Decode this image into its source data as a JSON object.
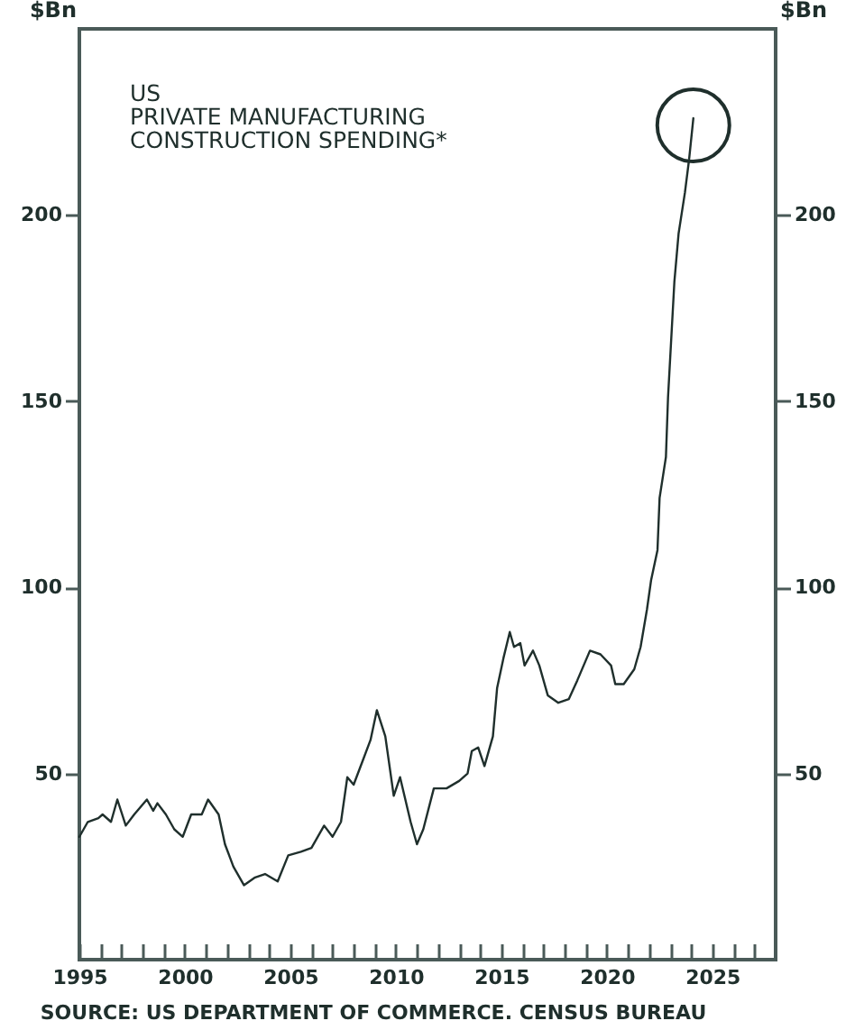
{
  "chart_data": {
    "type": "line",
    "ylabel": "$Bn",
    "y2label": "$Bn",
    "annotations": [
      "US\nPRIVATE MANUFACTURING\nCONSTRUCTION SPENDING*",
      "SOURCE: US DEPARTMENT OF COMMERCE. CENSUS BUREAU"
    ],
    "series": [
      {
        "color": "#1f2f2c",
        "x": [
          1995.0,
          1995.4,
          1995.9,
          1996.1,
          1996.5,
          1996.8,
          1997.2,
          1997.6,
          1998.2,
          1998.5,
          1998.7,
          1999.1,
          1999.5,
          1999.9,
          2000.3,
          2000.8,
          2001.1,
          2001.6,
          2001.9,
          2002.3,
          2002.8,
          2003.3,
          2003.8,
          2004.4,
          2004.9,
          2005.5,
          2006.0,
          2006.6,
          2007.0,
          2007.4,
          2007.7,
          2008.0,
          2008.4,
          2008.8,
          2009.1,
          2009.5,
          2009.9,
          2010.2,
          2010.7,
          2011.0,
          2011.3,
          2011.8,
          2012.4,
          2013.0,
          2013.4,
          2013.6,
          2013.9,
          2014.2,
          2014.6,
          2014.8,
          2015.1,
          2015.4,
          2015.6,
          2015.9,
          2016.1,
          2016.5,
          2016.8,
          2017.2,
          2017.7,
          2018.2,
          2018.6,
          2019.2,
          2019.7,
          2020.2,
          2020.4,
          2020.8,
          2021.3,
          2021.6,
          2021.9,
          2022.1,
          2022.4,
          2022.5,
          2022.8,
          2022.9,
          2023.2,
          2023.4,
          2023.7,
          2023.9,
          2024.1
        ],
        "values": [
          33,
          37,
          38,
          39,
          37,
          43,
          36,
          39,
          43,
          40,
          42,
          39,
          35,
          33,
          39,
          39,
          43,
          39,
          31,
          25,
          20,
          22,
          23,
          21,
          28,
          29,
          30,
          36,
          33,
          37,
          49,
          47,
          53,
          59,
          67,
          60,
          44,
          49,
          37,
          31,
          35,
          46,
          46,
          48,
          50,
          56,
          57,
          52,
          60,
          73,
          81,
          88,
          84,
          85,
          79,
          83,
          79,
          71,
          69,
          70,
          75,
          83,
          82,
          79,
          74,
          74,
          78,
          84,
          94,
          102,
          110,
          124,
          135,
          151,
          182,
          195,
          206,
          215,
          226
        ]
      }
    ],
    "xlim": [
      1995,
      2028
    ],
    "xticks": [
      1995,
      {
        "value": 1996,
        "label": null
      },
      {
        "value": 1997,
        "label": null
      },
      {
        "value": 1998,
        "label": null
      },
      {
        "value": 1999,
        "label": null
      },
      2000,
      {
        "value": 2001,
        "label": null
      },
      {
        "value": 2002,
        "label": null
      },
      {
        "value": 2003,
        "label": null
      },
      {
        "value": 2004,
        "label": null
      },
      2005,
      {
        "value": 2006,
        "label": null
      },
      {
        "value": 2007,
        "label": null
      },
      {
        "value": 2008,
        "label": null
      },
      {
        "value": 2009,
        "label": null
      },
      2010,
      {
        "value": 2011,
        "label": null
      },
      {
        "value": 2012,
        "label": null
      },
      {
        "value": 2013,
        "label": null
      },
      {
        "value": 2014,
        "label": null
      },
      2015,
      {
        "value": 2016,
        "label": null
      },
      {
        "value": 2017,
        "label": null
      },
      {
        "value": 2018,
        "label": null
      },
      {
        "value": 2019,
        "label": null
      },
      2020,
      {
        "value": 2021,
        "label": null
      },
      {
        "value": 2022,
        "label": null
      },
      {
        "value": 2023,
        "label": null
      },
      {
        "value": 2024,
        "label": null
      },
      2025,
      {
        "value": 2026,
        "label": null
      },
      {
        "value": 2027,
        "label": null
      }
    ],
    "ylim": [
      0,
      250
    ],
    "yticks": [
      50,
      100,
      150,
      200
    ],
    "y2lim": [
      0,
      250
    ],
    "y2ticks": [
      50,
      100,
      150,
      200
    ],
    "grid": false,
    "marker": "none",
    "line_style": "solid"
  }
}
